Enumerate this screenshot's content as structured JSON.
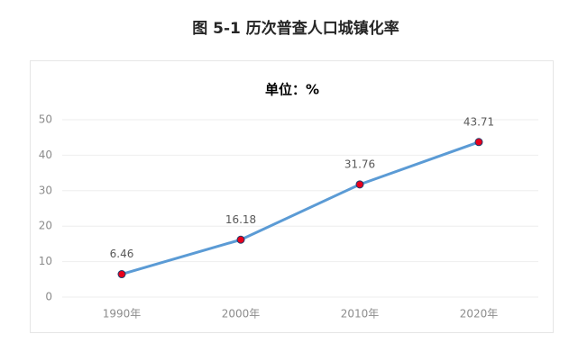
{
  "chart_data": {
    "type": "line",
    "title": "图 5-1  历次普查人口城镇化率",
    "subtitle": "单位：%",
    "categories": [
      "1990年",
      "2000年",
      "2010年",
      "2020年"
    ],
    "values": [
      6.46,
      16.18,
      31.76,
      43.71
    ],
    "color": "#5b9bd5",
    "marker_color": "#e8001c",
    "ylim": [
      0,
      50
    ],
    "yticks": [
      0,
      10,
      20,
      30,
      40,
      50
    ],
    "grid": true
  }
}
